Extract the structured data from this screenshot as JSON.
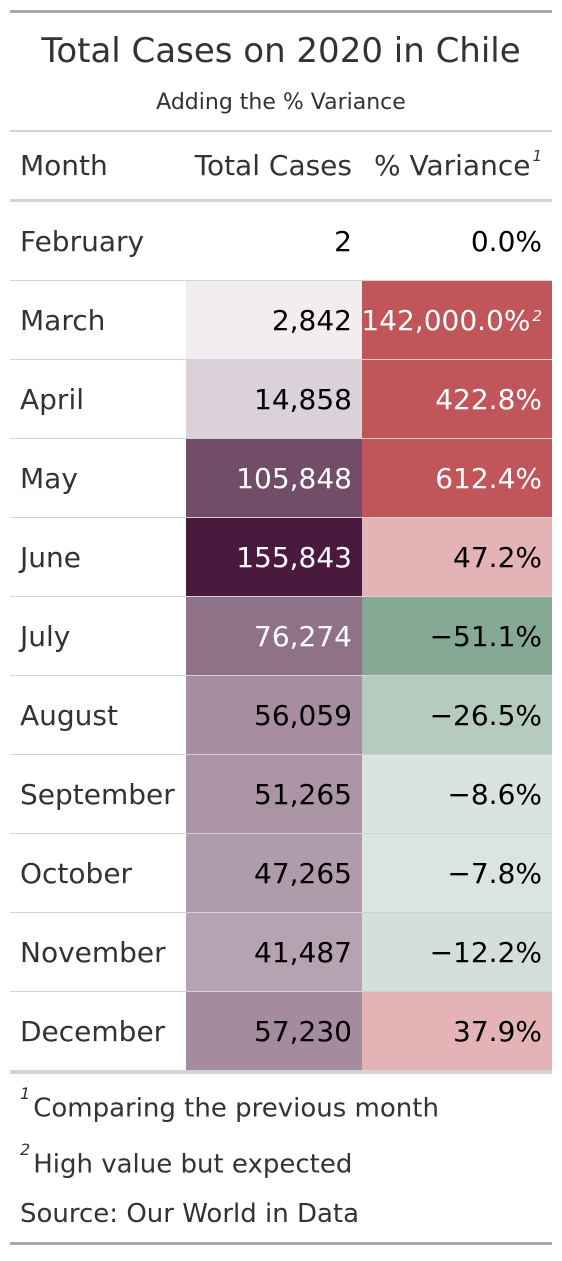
{
  "header": {
    "title": "Total Cases on 2020 in Chile",
    "subtitle": "Adding the % Variance"
  },
  "columns": {
    "month": "Month",
    "total_cases": "Total Cases",
    "variance": "% Variance",
    "variance_mark": "1"
  },
  "colors": {
    "cases_scale_low": "#ffffff",
    "cases_scale_high": "#4a1a3e",
    "variance_positive": "#c0555a",
    "variance_negative": "#86a995"
  },
  "footnotes": [
    {
      "mark": "1",
      "text": "Comparing the previous month"
    },
    {
      "mark": "2",
      "text": "High value but expected"
    }
  ],
  "source": "Source: Our World in Data",
  "chart_data": {
    "type": "table",
    "title": "Total Cases on 2020 in Chile",
    "subtitle": "Adding the % Variance",
    "columns": [
      "Month",
      "Total Cases",
      "% Variance"
    ],
    "rows": [
      {
        "month": "February",
        "cases": 2,
        "cases_label": "2",
        "variance": 0.0,
        "variance_label": "0.0%",
        "mark": ""
      },
      {
        "month": "March",
        "cases": 2842,
        "cases_label": "2,842",
        "variance": 142000.0,
        "variance_label": "142,000.0%",
        "mark": "2"
      },
      {
        "month": "April",
        "cases": 14858,
        "cases_label": "14,858",
        "variance": 422.8,
        "variance_label": "422.8%",
        "mark": ""
      },
      {
        "month": "May",
        "cases": 105848,
        "cases_label": "105,848",
        "variance": 612.4,
        "variance_label": "612.4%",
        "mark": ""
      },
      {
        "month": "June",
        "cases": 155843,
        "cases_label": "155,843",
        "variance": 47.2,
        "variance_label": "47.2%",
        "mark": ""
      },
      {
        "month": "July",
        "cases": 76274,
        "cases_label": "76,274",
        "variance": -51.1,
        "variance_label": "−51.1%",
        "mark": ""
      },
      {
        "month": "August",
        "cases": 56059,
        "cases_label": "56,059",
        "variance": -26.5,
        "variance_label": "−26.5%",
        "mark": ""
      },
      {
        "month": "September",
        "cases": 51265,
        "cases_label": "51,265",
        "variance": -8.6,
        "variance_label": "−8.6%",
        "mark": ""
      },
      {
        "month": "October",
        "cases": 47265,
        "cases_label": "47,265",
        "variance": -7.8,
        "variance_label": "−7.8%",
        "mark": ""
      },
      {
        "month": "November",
        "cases": 41487,
        "cases_label": "41,487",
        "variance": -12.2,
        "variance_label": "−12.2%",
        "mark": ""
      },
      {
        "month": "December",
        "cases": 57230,
        "cases_label": "57,230",
        "variance": 37.9,
        "variance_label": "37.9%",
        "mark": ""
      }
    ]
  }
}
